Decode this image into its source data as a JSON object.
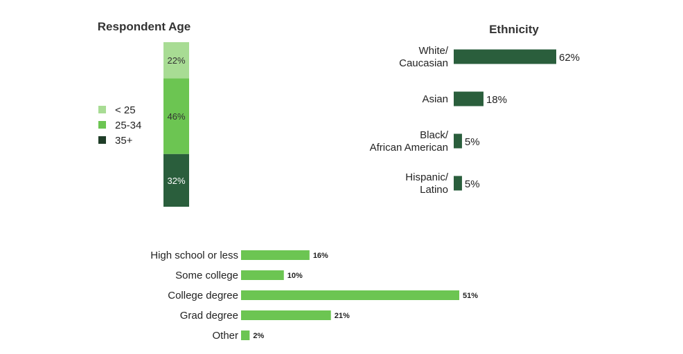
{
  "chart_data": [
    {
      "type": "bar",
      "stacked": true,
      "title": "Respondent Age",
      "series": [
        {
          "name": "< 25",
          "value": 22,
          "label": "22%",
          "color": "#a8dc94"
        },
        {
          "name": "25-34",
          "value": 46,
          "label": "46%",
          "color": "#6cc552"
        },
        {
          "name": "35+",
          "value": 32,
          "label": "32%",
          "color": "#2a5e3c"
        }
      ],
      "legend": [
        {
          "label": "< 25",
          "color": "#a8dc94"
        },
        {
          "label": "25-34",
          "color": "#6cc552"
        },
        {
          "label": "35+",
          "color": "#1f3d28"
        }
      ],
      "legend_position": "left"
    },
    {
      "type": "bar",
      "orientation": "horizontal",
      "title": "Ethnicity",
      "color": "#2a5e3c",
      "categories": [
        [
          "White/",
          "Caucasian"
        ],
        [
          "Asian"
        ],
        [
          "Black/",
          "African American"
        ],
        [
          "Hispanic/",
          "Latino"
        ]
      ],
      "values": [
        62,
        18,
        5,
        5
      ],
      "labels": [
        "62%",
        "18%",
        "5%",
        "5%"
      ]
    },
    {
      "type": "bar",
      "orientation": "horizontal",
      "title": "",
      "color": "#6cc552",
      "categories": [
        "High school or less",
        "Some college",
        "College degree",
        "Grad degree",
        "Other"
      ],
      "values": [
        16,
        10,
        51,
        21,
        2
      ],
      "labels": [
        "16%",
        "10%",
        "51%",
        "21%",
        "2%"
      ]
    }
  ]
}
